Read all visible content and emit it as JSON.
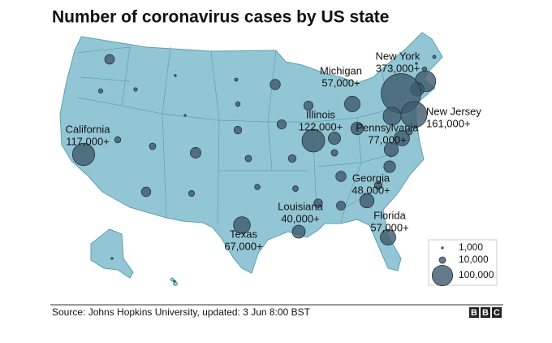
{
  "title": "Number of coronavirus cases by US state",
  "source": "Source: Johns Hopkins University, updated: 3 Jun 8:00 BST",
  "logo": "BBC",
  "map": {
    "land_color": "#93c6d4",
    "border_color": "#5e9fb3",
    "bubble_color": "#3e5a6b",
    "labeled": [
      {
        "name": "New York",
        "value": 373000,
        "value_label": "373,000+"
      },
      {
        "name": "New Jersey",
        "value": 161000,
        "value_label": "161,000+"
      },
      {
        "name": "Michigan",
        "value": 57000,
        "value_label": "57,000+"
      },
      {
        "name": "Illinois",
        "value": 122000,
        "value_label": "122,000+"
      },
      {
        "name": "Pennsylvania",
        "value": 77000,
        "value_label": "77,000+"
      },
      {
        "name": "California",
        "value": 117000,
        "value_label": "117,000+"
      },
      {
        "name": "Georgia",
        "value": 48000,
        "value_label": "48,000+"
      },
      {
        "name": "Louisiana",
        "value": 40000,
        "value_label": "40,000+"
      },
      {
        "name": "Florida",
        "value": 57000,
        "value_label": "57,000+"
      },
      {
        "name": "Texas",
        "value": 67000,
        "value_label": "67,000+"
      }
    ],
    "unlabeled_values": [
      22000,
      4500,
      3000,
      500,
      900,
      2500,
      5000,
      14000,
      25000,
      20000,
      20000,
      27000,
      10000,
      9000,
      21000,
      8000,
      10000,
      7000,
      14000,
      7500,
      17000,
      19000,
      25000,
      10000,
      36000,
      37000,
      47000,
      56000,
      32000,
      14000,
      102000,
      43000,
      1000,
      4800,
      2500,
      10000,
      500,
      650
    ],
    "legend": [
      {
        "value": 1000,
        "label": "1,000"
      },
      {
        "value": 10000,
        "label": "10,000"
      },
      {
        "value": 100000,
        "label": "100,000"
      }
    ]
  }
}
